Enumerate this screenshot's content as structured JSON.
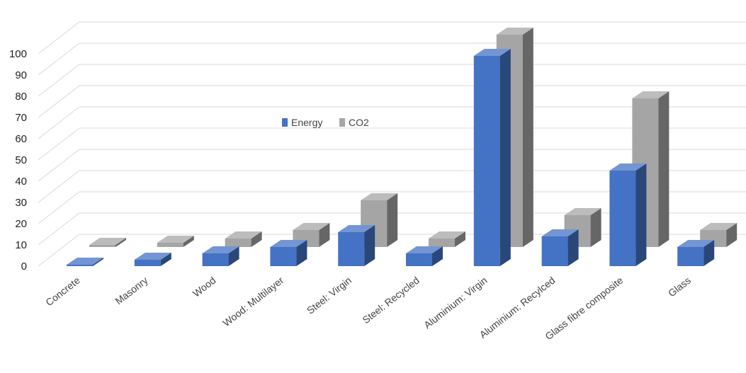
{
  "chart_data": {
    "type": "bar",
    "style": "3d-clustered-column",
    "title": "",
    "xlabel": "",
    "ylabel": "",
    "ylim": [
      0,
      100
    ],
    "yticks": [
      0,
      10,
      20,
      30,
      40,
      50,
      60,
      70,
      80,
      90,
      100
    ],
    "grid": true,
    "legend_position": "center",
    "categories": [
      "Concrete",
      "Masonry",
      "Wood",
      "Wood: Multilayer",
      "Steel: Virgin",
      "Steel: Recycled",
      "Aluminium: Virgin",
      "Aluminium: Recylced",
      "Glass fibre composite",
      "Glass"
    ],
    "series": [
      {
        "name": "Energy",
        "color": "#4472C4",
        "values": [
          0.5,
          3,
          6,
          9,
          16,
          6,
          99,
          14,
          45,
          9
        ]
      },
      {
        "name": "CO2",
        "color": "#A5A5A5",
        "values": [
          1,
          2,
          4,
          8,
          22,
          4,
          100,
          15,
          70,
          8
        ]
      }
    ]
  }
}
